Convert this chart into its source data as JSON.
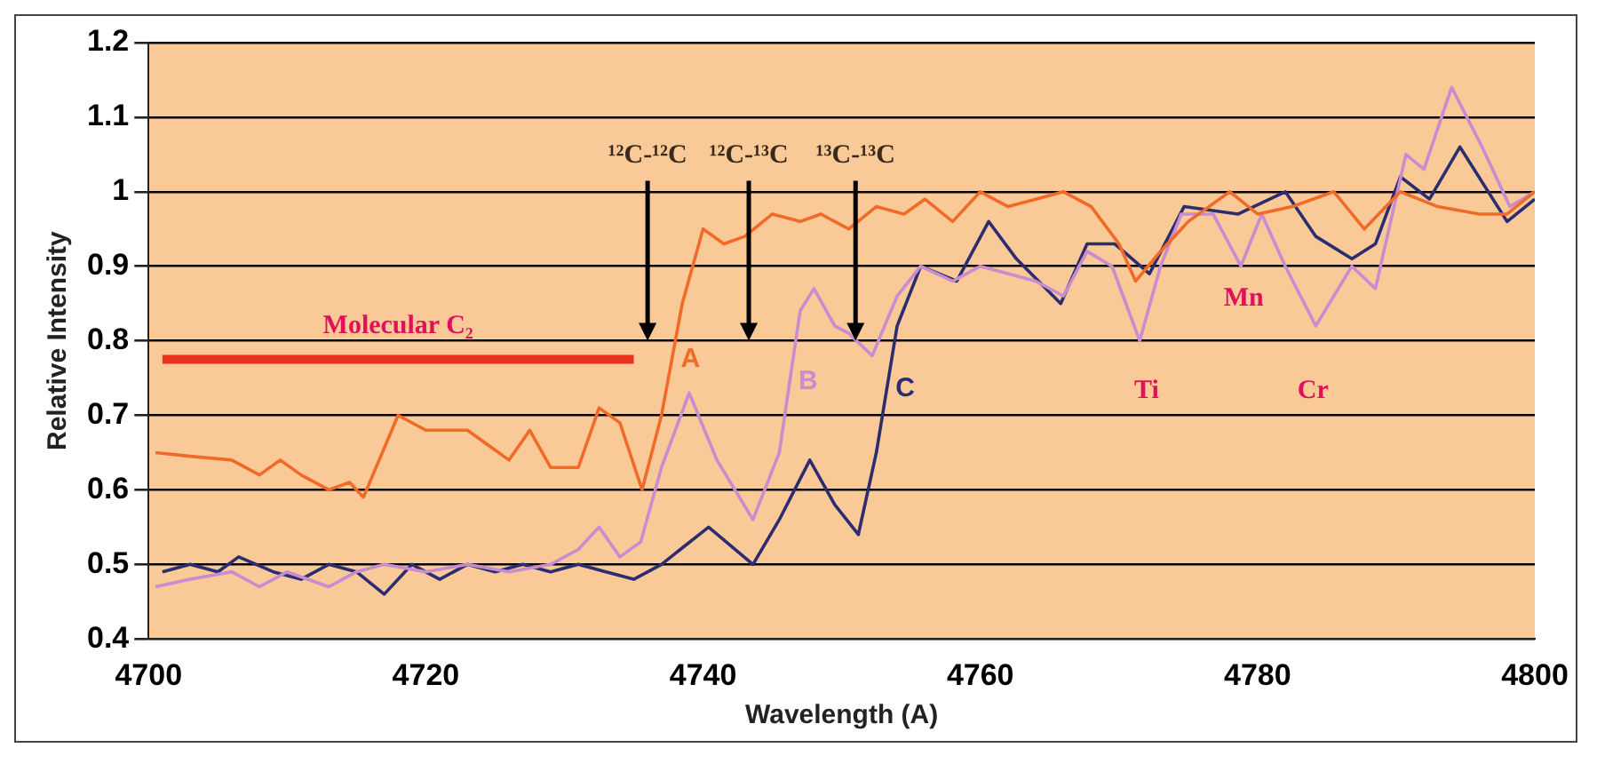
{
  "chart_data": {
    "type": "line",
    "xlabel": "Wavelength (A)",
    "ylabel": "Relative Intensity",
    "xlim": [
      4700,
      4800
    ],
    "xticks": [
      4700,
      4720,
      4740,
      4760,
      4780,
      4800
    ],
    "ylim": [
      0.4,
      1.2
    ],
    "yticks": [
      0.4,
      0.5,
      0.6,
      0.7,
      0.8,
      0.9,
      1,
      1.1,
      1.2
    ],
    "grid": "y",
    "legend": false,
    "marker": "none",
    "line_style": "solid",
    "series": [
      {
        "name": "A",
        "color": "#f06a28",
        "x": [
          4700.5,
          4703,
          4706,
          4708,
          4709.5,
          4711,
          4713,
          4714.5,
          4715.5,
          4718,
          4720,
          4723,
          4726,
          4727.5,
          4729,
          4731,
          4732.5,
          4734,
          4735.6,
          4737,
          4738.5,
          4740,
          4741.5,
          4743,
          4745,
          4747,
          4748.5,
          4750.5,
          4752.5,
          4754.5,
          4756,
          4758,
          4760,
          4762,
          4764,
          4766,
          4768,
          4770,
          4771.2,
          4773,
          4775,
          4778,
          4780,
          4782.5,
          4785.5,
          4787.7,
          4790.3,
          4793,
          4796,
          4798,
          4800
        ],
        "values": [
          0.65,
          0.645,
          0.64,
          0.62,
          0.64,
          0.62,
          0.6,
          0.61,
          0.59,
          0.7,
          0.68,
          0.68,
          0.64,
          0.68,
          0.63,
          0.63,
          0.71,
          0.69,
          0.6,
          0.7,
          0.85,
          0.95,
          0.93,
          0.94,
          0.97,
          0.96,
          0.97,
          0.95,
          0.98,
          0.97,
          0.99,
          0.96,
          1.0,
          0.98,
          0.99,
          1.0,
          0.98,
          0.93,
          0.88,
          0.92,
          0.96,
          1.0,
          0.97,
          0.98,
          1.0,
          0.95,
          1.0,
          0.98,
          0.97,
          0.97,
          1.0
        ]
      },
      {
        "name": "B",
        "color": "#c88cd0",
        "x": [
          4700.5,
          4703,
          4706,
          4708,
          4710,
          4713,
          4715,
          4717,
          4720,
          4723,
          4726,
          4729,
          4731,
          4732.5,
          4734,
          4735.5,
          4737,
          4739,
          4741,
          4743.6,
          4745.5,
          4747,
          4748,
          4749.5,
          4750.5,
          4752.2,
          4754,
          4755.7,
          4758,
          4760,
          4762,
          4764,
          4766,
          4767.7,
          4769.5,
          4771.5,
          4773,
          4774.5,
          4776.8,
          4778.8,
          4780.3,
          4782,
          4784.2,
          4786.8,
          4788.5,
          4790.7,
          4792,
          4794,
          4796.2,
          4798.2,
          4800
        ],
        "values": [
          0.47,
          0.48,
          0.49,
          0.47,
          0.49,
          0.47,
          0.49,
          0.5,
          0.49,
          0.5,
          0.49,
          0.5,
          0.52,
          0.55,
          0.51,
          0.53,
          0.63,
          0.73,
          0.64,
          0.56,
          0.65,
          0.84,
          0.87,
          0.82,
          0.81,
          0.78,
          0.86,
          0.9,
          0.88,
          0.9,
          0.89,
          0.88,
          0.86,
          0.92,
          0.9,
          0.8,
          0.9,
          0.97,
          0.97,
          0.9,
          0.97,
          0.9,
          0.82,
          0.9,
          0.87,
          1.05,
          1.03,
          1.14,
          1.06,
          0.98,
          1.0
        ]
      },
      {
        "name": "C",
        "color": "#2c2c70",
        "x": [
          4701,
          4703,
          4705,
          4706.5,
          4709,
          4711,
          4713,
          4715,
          4717,
          4719,
          4721,
          4723,
          4725,
          4727,
          4729,
          4731,
          4733,
          4735,
          4737,
          4740.4,
          4743.6,
          4745.5,
          4747.7,
          4749.5,
          4751.2,
          4752.5,
          4754,
          4755.7,
          4758.3,
          4760.6,
          4762.6,
          4765.8,
          4767.7,
          4769.7,
          4772.2,
          4774.7,
          4778.6,
          4782,
          4784.2,
          4786.8,
          4788.5,
          4790.3,
          4792.4,
          4794.6,
          4798,
          4800
        ],
        "values": [
          0.49,
          0.5,
          0.49,
          0.51,
          0.49,
          0.48,
          0.5,
          0.49,
          0.46,
          0.5,
          0.48,
          0.5,
          0.49,
          0.5,
          0.49,
          0.5,
          0.49,
          0.48,
          0.5,
          0.55,
          0.5,
          0.56,
          0.64,
          0.58,
          0.54,
          0.65,
          0.82,
          0.9,
          0.88,
          0.96,
          0.91,
          0.85,
          0.93,
          0.93,
          0.89,
          0.98,
          0.97,
          1.0,
          0.94,
          0.91,
          0.93,
          1.02,
          0.99,
          1.06,
          0.96,
          0.99
        ]
      },
      {
        "color": "#e8321e",
        "x": [
          4701,
          4735
        ],
        "values": [
          0.775,
          0.775
        ]
      }
    ],
    "annotations": [
      "Molecular C₂",
      "¹²C-¹²C",
      "¹²C-¹³C",
      {
        "text": "¹³C-¹³C",
        "x": 4751,
        "y": 0.8
      },
      "Ti",
      "Mn",
      "Cr"
    ]
  }
}
